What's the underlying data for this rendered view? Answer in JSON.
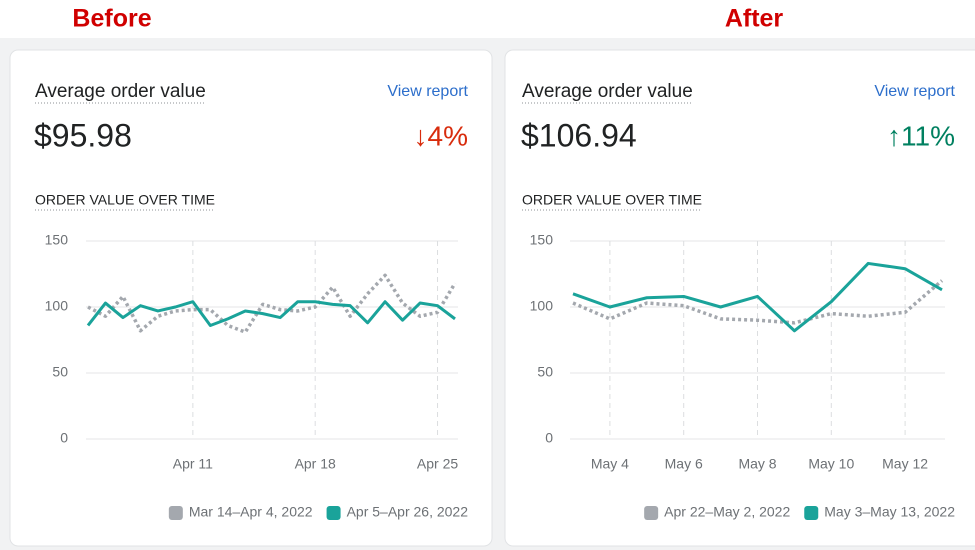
{
  "chart_data": [
    {
      "type": "line",
      "label": "Before",
      "title": "Average order value",
      "link": "View report",
      "metric": "$95.98",
      "change": "↓4%",
      "trend": "down",
      "subtitle": "ORDER VALUE OVER TIME",
      "categories": [
        null,
        null,
        null,
        null,
        null,
        null,
        "Apr 11",
        null,
        null,
        null,
        null,
        null,
        null,
        "Apr 18",
        null,
        null,
        null,
        null,
        null,
        null,
        "Apr 25",
        null
      ],
      "series": [
        {
          "name": "Mar 14–Apr 4, 2022",
          "color": "#a4a8ae",
          "style": "dotted",
          "values": [
            100,
            93,
            108,
            82,
            93,
            97,
            98,
            98,
            86,
            81,
            102,
            98,
            97,
            100,
            115,
            93,
            110,
            124,
            103,
            93,
            96,
            118
          ]
        },
        {
          "name": "Apr 5–Apr 26, 2022",
          "color": "#1aa39a",
          "style": "solid",
          "values": [
            86,
            103,
            92,
            101,
            97,
            100,
            104,
            86,
            91,
            97,
            95,
            92,
            104,
            104,
            102,
            101,
            88,
            104,
            90,
            103,
            101,
            91
          ]
        }
      ],
      "ylim": [
        0,
        150
      ],
      "yticks": [
        0,
        50,
        100,
        150
      ],
      "grid": true
    },
    {
      "type": "line",
      "label": "After",
      "title": "Average order value",
      "link": "View report",
      "metric": "$106.94",
      "change": "↑11%",
      "trend": "up",
      "subtitle": "ORDER VALUE OVER TIME",
      "categories": [
        null,
        "May 4",
        null,
        "May 6",
        null,
        "May 8",
        null,
        "May 10",
        null,
        "May 12",
        null
      ],
      "series": [
        {
          "name": "Apr 22–May 2, 2022",
          "color": "#a4a8ae",
          "style": "dotted",
          "values": [
            103,
            91,
            103,
            101,
            91,
            90,
            88,
            95,
            93,
            96,
            120
          ]
        },
        {
          "name": "May 3–May 13, 2022",
          "color": "#1aa39a",
          "style": "solid",
          "values": [
            110,
            100,
            107,
            108,
            100,
            108,
            82,
            104,
            133,
            129,
            113
          ]
        }
      ],
      "ylim": [
        0,
        150
      ],
      "yticks": [
        0,
        50,
        100,
        150
      ],
      "grid": true
    }
  ]
}
